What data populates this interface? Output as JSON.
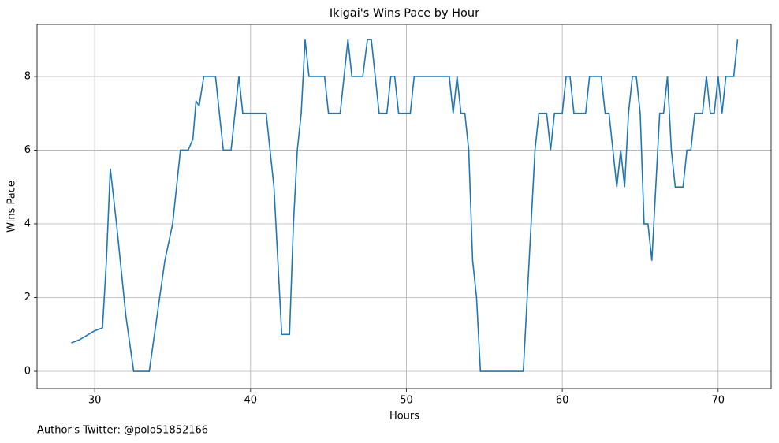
{
  "chart_data": {
    "type": "line",
    "title": "Ikigai's Wins Pace by Hour",
    "xlabel": "Hours",
    "ylabel": "Wins Pace",
    "footnote": "Author's Twitter: @polo51852166",
    "color": "#1f77b4",
    "grid": true,
    "xlim": [
      26.3,
      73.4
    ],
    "ylim": [
      -0.47,
      9.41
    ],
    "xticks": [
      30,
      40,
      50,
      60,
      70
    ],
    "yticks": [
      0,
      2,
      4,
      6,
      8
    ],
    "x": [
      28.5,
      29.0,
      30.0,
      30.5,
      30.75,
      31.0,
      31.4,
      32.0,
      32.5,
      33.5,
      34.0,
      34.5,
      35.0,
      35.5,
      36.0,
      36.3,
      36.5,
      36.7,
      37.0,
      37.75,
      38.25,
      38.75,
      39.25,
      39.5,
      41.0,
      41.5,
      42.0,
      42.5,
      42.75,
      43.0,
      43.25,
      43.5,
      43.75,
      44.75,
      45.0,
      45.75,
      46.25,
      46.5,
      47.2,
      47.5,
      47.75,
      48.25,
      48.75,
      49.0,
      49.25,
      49.5,
      50.25,
      50.5,
      52.75,
      53.0,
      53.25,
      53.5,
      53.75,
      54.0,
      54.25,
      54.5,
      54.75,
      57.5,
      58.0,
      58.25,
      58.5,
      59.0,
      59.25,
      59.5,
      60.0,
      60.25,
      60.5,
      60.75,
      61.5,
      61.75,
      62.5,
      62.75,
      63.0,
      63.25,
      63.5,
      63.75,
      64.0,
      64.25,
      64.5,
      64.75,
      65.0,
      65.25,
      65.5,
      65.75,
      66.0,
      66.25,
      66.5,
      66.75,
      67.0,
      67.25,
      67.75,
      68.0,
      68.25,
      68.5,
      69.0,
      69.25,
      69.5,
      69.75,
      70.0,
      70.25,
      70.5,
      71.0,
      71.25
    ],
    "values": [
      0.77,
      0.85,
      1.1,
      1.18,
      3,
      5.5,
      4,
      1.5,
      0,
      0,
      1.5,
      3,
      4,
      6,
      6,
      6.3,
      7.33,
      7.2,
      8,
      8,
      6,
      6,
      8,
      7,
      7,
      5,
      1,
      1,
      4,
      6,
      7,
      9,
      8,
      8,
      7,
      7,
      9,
      8,
      8,
      9,
      9,
      7,
      7,
      8,
      8,
      7,
      7,
      8,
      8,
      7,
      8,
      7,
      7,
      6,
      3,
      2,
      0,
      0,
      4,
      6,
      7,
      7,
      6,
      7,
      7,
      8,
      8,
      7,
      7,
      8,
      8,
      7,
      7,
      6,
      5,
      6,
      5,
      7,
      8,
      8,
      7,
      4,
      4,
      3,
      5,
      7,
      7,
      8,
      6,
      5,
      5,
      6,
      6,
      7,
      7,
      8,
      7,
      7,
      8,
      7,
      8,
      8,
      9
    ]
  }
}
